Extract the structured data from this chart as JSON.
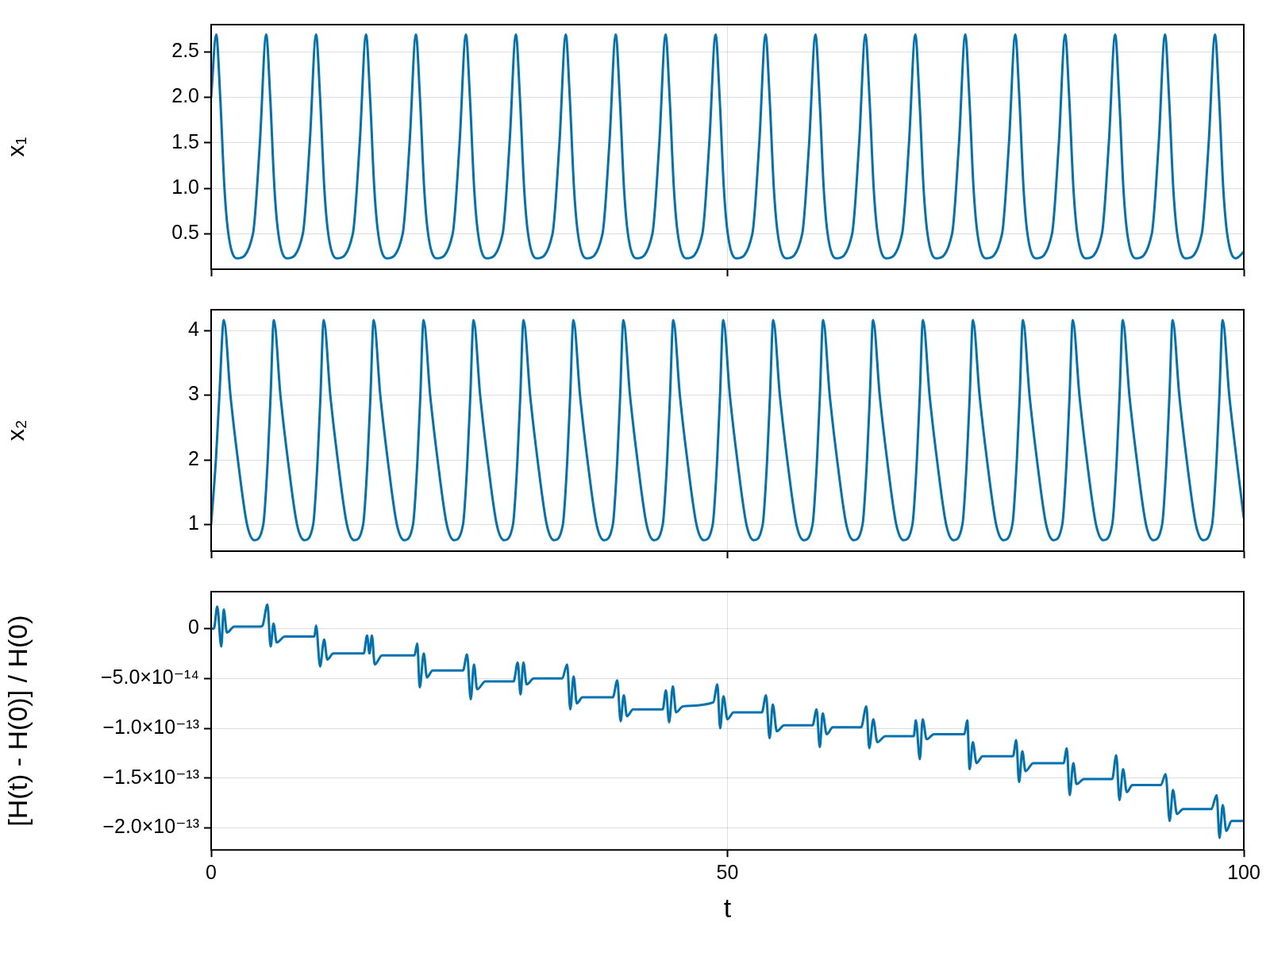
{
  "chart_data": [
    {
      "type": "line",
      "ylabel": "x₁",
      "color": "#0072b2",
      "marker": "none",
      "grid": true,
      "tick_labels": "y",
      "xlim": [
        0,
        100
      ],
      "xticks": [
        0,
        50,
        100
      ],
      "ylim": [
        0.11,
        2.8
      ],
      "yticks": [
        0.5,
        {
          "value": 1,
          "label": "1.0"
        },
        1.5,
        {
          "value": 2,
          "label": "2.0"
        },
        2.5
      ],
      "x": [
        0,
        0.49,
        0.88,
        1.29,
        1.67,
        2.49,
        4.05,
        4.72,
        5.33,
        5.72,
        6.13,
        6.51,
        7.33,
        8.88,
        9.55,
        10.16,
        10.55,
        10.96,
        11.34,
        12.16,
        13.72,
        14.39,
        15.0,
        15.39,
        15.8,
        16.18,
        17.0,
        18.55,
        19.22,
        19.83,
        20.22,
        20.63,
        21.01,
        21.83,
        23.39,
        24.06,
        24.67,
        25.06,
        25.47,
        25.85,
        26.67,
        28.23,
        28.9,
        29.51,
        29.9,
        30.31,
        30.69,
        31.51,
        33.06,
        33.73,
        34.34,
        34.73,
        35.14,
        35.52,
        36.34,
        37.9,
        38.57,
        39.18,
        39.57,
        39.98,
        40.36,
        41.18,
        42.73,
        43.4,
        44.01,
        44.4,
        44.81,
        45.19,
        46.01,
        47.57,
        48.24,
        48.85,
        49.24,
        49.65,
        50.03,
        50.85,
        52.41,
        53.08,
        53.69,
        54.08,
        54.49,
        54.87,
        55.69,
        57.24,
        57.91,
        58.52,
        58.91,
        59.32,
        59.7,
        60.52,
        62.08,
        62.75,
        63.36,
        63.75,
        64.16,
        64.54,
        65.36,
        66.91,
        67.58,
        68.19,
        68.58,
        68.99,
        69.37,
        70.19,
        71.75,
        72.42,
        73.03,
        73.42,
        73.83,
        74.21,
        75.03,
        76.59,
        77.26,
        77.87,
        78.26,
        78.67,
        79.05,
        79.87,
        81.42,
        82.09,
        82.7,
        83.09,
        83.5,
        83.88,
        84.7,
        86.26,
        86.93,
        87.54,
        87.93,
        88.34,
        88.72,
        89.54,
        91.09,
        91.76,
        92.37,
        92.76,
        93.17,
        93.55,
        94.37,
        95.93,
        96.6,
        97.21,
        97.6,
        98.01,
        98.39,
        99.21,
        100
      ],
      "values": [
        2.0,
        2.69,
        2.0,
        1.0,
        0.5,
        0.23,
        0.5,
        1.5,
        2.69,
        2.0,
        1.0,
        0.5,
        0.23,
        0.5,
        1.5,
        2.69,
        2.0,
        1.0,
        0.5,
        0.23,
        0.5,
        1.5,
        2.69,
        2.0,
        1.0,
        0.5,
        0.23,
        0.5,
        1.5,
        2.69,
        2.0,
        1.0,
        0.5,
        0.23,
        0.5,
        1.5,
        2.69,
        2.0,
        1.0,
        0.5,
        0.23,
        0.5,
        1.5,
        2.69,
        2.0,
        1.0,
        0.5,
        0.23,
        0.5,
        1.5,
        2.69,
        2.0,
        1.0,
        0.5,
        0.23,
        0.5,
        1.5,
        2.69,
        2.0,
        1.0,
        0.5,
        0.23,
        0.5,
        1.5,
        2.69,
        2.0,
        1.0,
        0.5,
        0.23,
        0.5,
        1.5,
        2.69,
        2.0,
        1.0,
        0.5,
        0.23,
        0.5,
        1.5,
        2.69,
        2.0,
        1.0,
        0.5,
        0.23,
        0.5,
        1.5,
        2.69,
        2.0,
        1.0,
        0.5,
        0.23,
        0.5,
        1.5,
        2.69,
        2.0,
        1.0,
        0.5,
        0.23,
        0.5,
        1.5,
        2.69,
        2.0,
        1.0,
        0.5,
        0.23,
        0.5,
        1.5,
        2.69,
        2.0,
        1.0,
        0.5,
        0.23,
        0.5,
        1.5,
        2.69,
        2.0,
        1.0,
        0.5,
        0.23,
        0.5,
        1.5,
        2.69,
        2.0,
        1.0,
        0.5,
        0.23,
        0.5,
        1.5,
        2.69,
        2.0,
        1.0,
        0.5,
        0.23,
        0.5,
        1.5,
        2.69,
        2.0,
        1.0,
        0.5,
        0.23,
        0.5,
        1.5,
        2.69,
        2.0,
        1.0,
        0.5,
        0.23,
        0.3
      ]
    },
    {
      "type": "line",
      "ylabel": "x₂",
      "color": "#0072b2",
      "marker": "none",
      "grid": true,
      "tick_labels": "y",
      "xlim": [
        0,
        100
      ],
      "xticks": [
        0,
        50,
        100
      ],
      "ylim": [
        0.59,
        4.32
      ],
      "yticks": [
        1,
        2,
        3,
        4
      ],
      "x": [
        0,
        0.46,
        0.8,
        1.23,
        1.87,
        2.59,
        3.48,
        4.2,
        5.05,
        5.48,
        5.76,
        6.07,
        6.71,
        7.43,
        8.32,
        9.04,
        9.88,
        10.31,
        10.59,
        10.9,
        11.54,
        12.26,
        13.15,
        13.87,
        14.72,
        15.15,
        15.43,
        15.74,
        16.38,
        17.1,
        17.99,
        18.71,
        19.55,
        19.98,
        20.26,
        20.57,
        21.21,
        21.93,
        22.82,
        23.54,
        24.39,
        24.82,
        25.1,
        25.41,
        26.05,
        26.77,
        27.66,
        28.38,
        29.23,
        29.66,
        29.94,
        30.25,
        30.89,
        31.61,
        32.5,
        33.22,
        34.06,
        34.49,
        34.77,
        35.08,
        35.72,
        36.44,
        37.33,
        38.05,
        38.9,
        39.33,
        39.61,
        39.92,
        40.56,
        41.28,
        42.17,
        42.89,
        43.73,
        44.16,
        44.44,
        44.75,
        45.39,
        46.11,
        47.0,
        47.72,
        48.57,
        49.0,
        49.28,
        49.59,
        50.23,
        50.95,
        51.84,
        52.56,
        53.41,
        53.84,
        54.12,
        54.43,
        55.07,
        55.79,
        56.68,
        57.4,
        58.24,
        58.67,
        58.95,
        59.26,
        59.9,
        60.62,
        61.51,
        62.23,
        63.08,
        63.51,
        63.79,
        64.1,
        64.74,
        65.46,
        66.35,
        67.07,
        67.91,
        68.34,
        68.62,
        68.93,
        69.57,
        70.29,
        71.18,
        71.9,
        72.75,
        73.18,
        73.46,
        73.77,
        74.41,
        75.13,
        76.02,
        76.74,
        77.59,
        78.02,
        78.3,
        78.61,
        79.25,
        79.97,
        80.86,
        81.58,
        82.42,
        82.85,
        83.13,
        83.44,
        84.08,
        84.8,
        85.69,
        86.41,
        87.26,
        87.69,
        87.97,
        88.28,
        88.92,
        89.64,
        90.53,
        91.25,
        92.09,
        92.52,
        92.8,
        93.11,
        93.75,
        94.47,
        95.36,
        96.08,
        96.93,
        97.36,
        97.64,
        97.95,
        98.59,
        99.31,
        100
      ],
      "values": [
        1.0,
        2.0,
        3.0,
        4.16,
        3.0,
        2.0,
        1.0,
        0.76,
        1.0,
        2.0,
        3.0,
        4.16,
        3.0,
        2.0,
        1.0,
        0.76,
        1.0,
        2.0,
        3.0,
        4.16,
        3.0,
        2.0,
        1.0,
        0.76,
        1.0,
        2.0,
        3.0,
        4.16,
        3.0,
        2.0,
        1.0,
        0.76,
        1.0,
        2.0,
        3.0,
        4.16,
        3.0,
        2.0,
        1.0,
        0.76,
        1.0,
        2.0,
        3.0,
        4.16,
        3.0,
        2.0,
        1.0,
        0.76,
        1.0,
        2.0,
        3.0,
        4.16,
        3.0,
        2.0,
        1.0,
        0.76,
        1.0,
        2.0,
        3.0,
        4.16,
        3.0,
        2.0,
        1.0,
        0.76,
        1.0,
        2.0,
        3.0,
        4.16,
        3.0,
        2.0,
        1.0,
        0.76,
        1.0,
        2.0,
        3.0,
        4.16,
        3.0,
        2.0,
        1.0,
        0.76,
        1.0,
        2.0,
        3.0,
        4.16,
        3.0,
        2.0,
        1.0,
        0.76,
        1.0,
        2.0,
        3.0,
        4.16,
        3.0,
        2.0,
        1.0,
        0.76,
        1.0,
        2.0,
        3.0,
        4.16,
        3.0,
        2.0,
        1.0,
        0.76,
        1.0,
        2.0,
        3.0,
        4.16,
        3.0,
        2.0,
        1.0,
        0.76,
        1.0,
        2.0,
        3.0,
        4.16,
        3.0,
        2.0,
        1.0,
        0.76,
        1.0,
        2.0,
        3.0,
        4.16,
        3.0,
        2.0,
        1.0,
        0.76,
        1.0,
        2.0,
        3.0,
        4.16,
        3.0,
        2.0,
        1.0,
        0.76,
        1.0,
        2.0,
        3.0,
        4.16,
        3.0,
        2.0,
        1.0,
        0.76,
        1.0,
        2.0,
        3.0,
        4.16,
        3.0,
        2.0,
        1.0,
        0.76,
        1.0,
        2.0,
        3.0,
        4.16,
        3.0,
        2.0,
        1.0,
        0.76,
        1.0,
        2.0,
        3.0,
        4.16,
        3.0,
        2.0,
        1.1
      ]
    },
    {
      "type": "line",
      "xlabel": "t",
      "ylabel": "[H(t) - H(0)] / H(0)",
      "color": "#0072b2",
      "marker": "none",
      "grid": true,
      "xlim": [
        0,
        100
      ],
      "xticks": [
        0,
        50,
        100
      ],
      "ylim": [
        -2.22e-13,
        3.7e-14
      ],
      "yticks": [
        0,
        {
          "value": -5e-14,
          "label": "−5.0×10⁻¹⁴"
        },
        {
          "value": -1e-13,
          "label": "−1.0×10⁻¹³"
        },
        {
          "value": -1.5e-13,
          "label": "−1.5×10⁻¹³"
        },
        {
          "value": -2e-13,
          "label": "−2.0×10⁻¹³"
        }
      ],
      "x": [
        0,
        0.27,
        0.59,
        0.98,
        1.22,
        1.53,
        2.24,
        4.78,
        4.98,
        5.45,
        5.76,
        6.04,
        6.35,
        7.14,
        10.0,
        10.16,
        10.55,
        10.94,
        11.25,
        11.84,
        14.78,
        15.1,
        15.33,
        15.57,
        15.84,
        16.55,
        19.69,
        19.96,
        20.2,
        20.59,
        20.9,
        21.45,
        24.39,
        24.78,
        25.14,
        25.45,
        25.76,
        26.55,
        29.29,
        29.69,
        29.96,
        30.24,
        30.55,
        31.25,
        34.0,
        34.47,
        34.78,
        35.1,
        35.41,
        35.96,
        38.9,
        39.33,
        39.65,
        39.96,
        40.27,
        40.86,
        43.73,
        44.04,
        44.35,
        44.71,
        45.02,
        45.69,
        48.63,
        49.02,
        49.29,
        49.61,
        50.0,
        50.59,
        53.33,
        53.73,
        54.08,
        54.39,
        54.78,
        55.49,
        58.24,
        58.63,
        58.94,
        59.22,
        59.61,
        60.2,
        62.94,
        63.45,
        63.73,
        64.12,
        64.51,
        65.29,
        68.04,
        68.24,
        68.63,
        68.9,
        69.29,
        70.0,
        72.94,
        73.22,
        73.45,
        73.76,
        74.12,
        74.71,
        77.65,
        77.96,
        78.24,
        78.55,
        78.86,
        79.61,
        82.55,
        82.86,
        83.14,
        83.49,
        83.8,
        84.51,
        87.25,
        87.65,
        87.96,
        88.31,
        88.67,
        89.22,
        91.96,
        92.43,
        92.82,
        93.14,
        93.53,
        94.12,
        96.86,
        97.37,
        97.65,
        97.96,
        98.31,
        98.82,
        100
      ],
      "values": [
        0,
        0,
        2.2e-14,
        -1.8e-14,
        1.9e-14,
        -4e-15,
        2e-15,
        2e-15,
        3e-15,
        2.4e-14,
        -1.8e-14,
        5e-15,
        -1.4e-14,
        -8e-15,
        -8e-15,
        3e-15,
        -3.8e-14,
        -1.1e-14,
        -3.1e-14,
        -2.5e-14,
        -2.5e-14,
        -7e-15,
        -2.5e-14,
        -7e-15,
        -3.6e-14,
        -2.7e-14,
        -2.7e-14,
        -1.5e-14,
        -5.9e-14,
        -2.5e-14,
        -4.9e-14,
        -4.2e-14,
        -4.2e-14,
        -2.6e-14,
        -7.1e-14,
        -3.6e-14,
        -6.1e-14,
        -5.3e-14,
        -5.3e-14,
        -3.4e-14,
        -6.6e-14,
        -3.4e-14,
        -5.6e-14,
        -5e-14,
        -5e-14,
        -3.6e-14,
        -8.1e-14,
        -4.8e-14,
        -7.5e-14,
        -6.9e-14,
        -6.9e-14,
        -5.2e-14,
        -9.3e-14,
        -6.7e-14,
        -8.8e-14,
        -8.1e-14,
        -8.1e-14,
        -6.2e-14,
        -9.4e-14,
        -5.8e-14,
        -8.4e-14,
        -7.8e-14,
        -7.4e-14,
        -5.6e-14,
        -1e-13,
        -6.8e-14,
        -9.1e-14,
        -8.4e-14,
        -8.4e-14,
        -6.7e-14,
        -1.1e-13,
        -7.6e-14,
        -1.03e-13,
        -9.7e-14,
        -9.7e-14,
        -8.1e-14,
        -1.19e-13,
        -8.5e-14,
        -1.06e-13,
        -9.9e-14,
        -9.9e-14,
        -7.8e-14,
        -1.2e-13,
        -9.1e-14,
        -1.14e-13,
        -1.08e-13,
        -1.08e-13,
        -9.2e-14,
        -1.31e-13,
        -9.1e-14,
        -1.11e-13,
        -1.06e-13,
        -1.06e-13,
        -9.2e-14,
        -1.41e-13,
        -1.14e-13,
        -1.35e-13,
        -1.28e-13,
        -1.28e-13,
        -1.12e-13,
        -1.54e-13,
        -1.23e-13,
        -1.43e-13,
        -1.35e-13,
        -1.35e-13,
        -1.2e-13,
        -1.67e-13,
        -1.35e-13,
        -1.56e-13,
        -1.51e-13,
        -1.51e-13,
        -1.27e-13,
        -1.72e-13,
        -1.41e-13,
        -1.64e-13,
        -1.57e-13,
        -1.57e-13,
        -1.46e-13,
        -1.93e-13,
        -1.62e-13,
        -1.86e-13,
        -1.81e-13,
        -1.81e-13,
        -1.67e-13,
        -2.1e-13,
        -1.77e-13,
        -2.03e-13,
        -1.93e-13,
        -1.93e-13
      ]
    }
  ]
}
